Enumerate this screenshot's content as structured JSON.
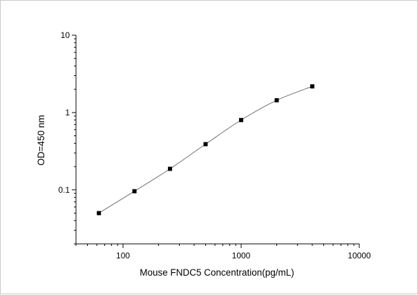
{
  "chart_data": {
    "type": "scatter",
    "title": "",
    "xlabel": "Mouse FNDC5 Concentration(pg/mL)",
    "ylabel": "OD=450 nm",
    "x_scale": "log",
    "y_scale": "log",
    "xlim": [
      40,
      10000
    ],
    "ylim": [
      0.02,
      10
    ],
    "x_ticks": [
      100,
      1000,
      10000
    ],
    "x_tick_labels": [
      "100",
      "1000",
      "10000"
    ],
    "y_ticks": [
      0.1,
      1,
      10
    ],
    "y_tick_labels": [
      "0.1",
      "1",
      "10"
    ],
    "grid": false,
    "legend": "none",
    "series": [
      {
        "x": [
          62.5,
          125,
          250,
          500,
          1000,
          2000,
          4000
        ],
        "y": [
          0.05,
          0.096,
          0.187,
          0.39,
          0.8,
          1.44,
          2.18
        ],
        "marker": "square",
        "line": "smooth curve",
        "color": "#000000",
        "line_color": "#6e6e6e"
      }
    ]
  }
}
